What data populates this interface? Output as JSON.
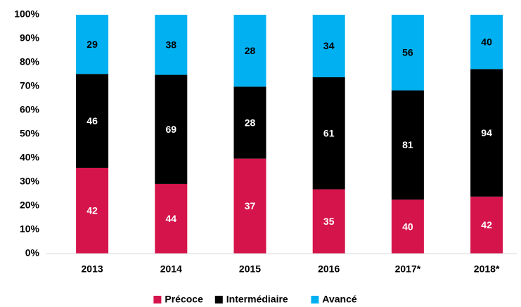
{
  "chart_data": {
    "type": "bar",
    "stacking": "percent",
    "categories": [
      "2013",
      "2014",
      "2015",
      "2016",
      "2017*",
      "2018*"
    ],
    "series": [
      {
        "name": "Précoce",
        "color": "#d5144b",
        "label_color": "#ffffff",
        "values": [
          42,
          44,
          37,
          35,
          40,
          42
        ]
      },
      {
        "name": "Intermédiaire",
        "color": "#000000",
        "label_color": "#ffffff",
        "values": [
          46,
          69,
          28,
          61,
          81,
          94
        ]
      },
      {
        "name": "Avancé",
        "color": "#00b0f0",
        "label_color": "#000000",
        "values": [
          29,
          38,
          28,
          34,
          56,
          40
        ]
      }
    ],
    "ylim": [
      0,
      100
    ],
    "yticks": [
      {
        "value": 0,
        "label": "0%"
      },
      {
        "value": 10,
        "label": "10%"
      },
      {
        "value": 20,
        "label": "20%"
      },
      {
        "value": 30,
        "label": "30%"
      },
      {
        "value": 40,
        "label": "40%"
      },
      {
        "value": 50,
        "label": "50%"
      },
      {
        "value": 60,
        "label": "60%"
      },
      {
        "value": 70,
        "label": "70%"
      },
      {
        "value": 80,
        "label": "80%"
      },
      {
        "value": 90,
        "label": "90%"
      },
      {
        "value": 100,
        "label": "100%"
      }
    ],
    "grid": false,
    "legend": "bottom"
  }
}
